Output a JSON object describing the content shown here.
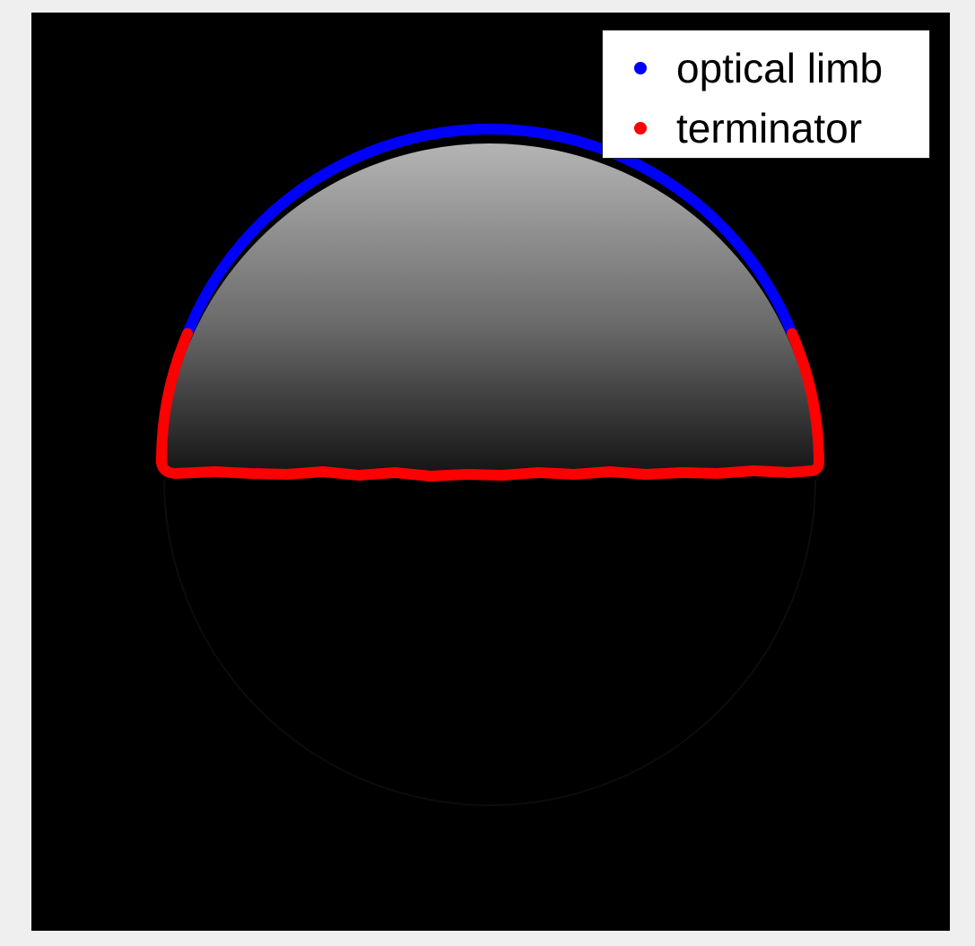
{
  "image": {
    "background_color": "#efefef",
    "plot_background_color": "#000000",
    "limb_color": "#0000ff",
    "terminator_color": "#ff0000",
    "lit_gradient": [
      "#b4b4b4",
      "#6a6a6a",
      "#141414"
    ]
  },
  "legend": {
    "items": [
      {
        "label": "optical limb",
        "color": "#0000ff"
      },
      {
        "label": "terminator",
        "color": "#ff0000"
      }
    ]
  }
}
